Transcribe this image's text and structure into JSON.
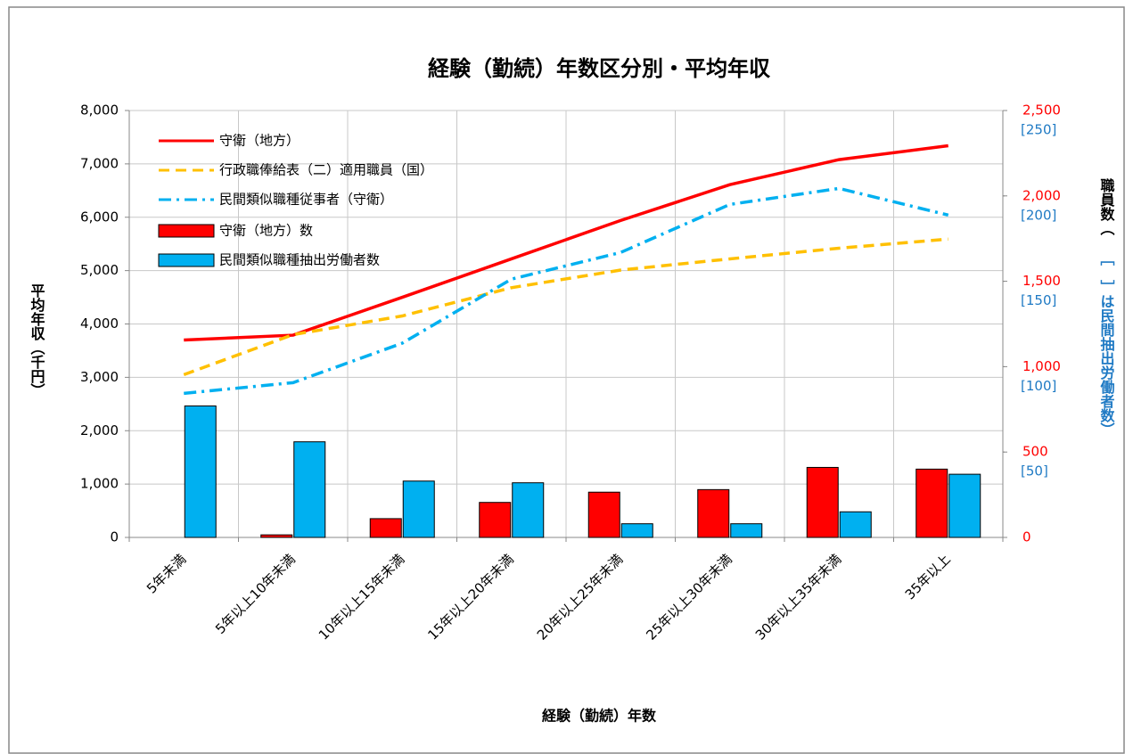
{
  "chart_data": {
    "type": "combo",
    "title": "経験（勤続）年数区分別・平均年収",
    "x_label": "経験（勤続）年数",
    "y_label": "平均年収（千円）",
    "y2_label": "職員数（",
    "y3_label": "［　］は民間抽出労働者数）",
    "categories": [
      "5年未満",
      "5年以上10年未満",
      "10年以上15年未満",
      "15年以上20年未満",
      "20年以上25年未満",
      "25年以上30年未満",
      "30年以上35年未満",
      "35年以上"
    ],
    "ylim": [
      0,
      8000
    ],
    "yticks": [
      0,
      {
        "value": 1000,
        "label": "1,000"
      },
      {
        "value": 2000,
        "label": "2,000"
      },
      {
        "value": 3000,
        "label": "3,000"
      },
      {
        "value": 4000,
        "label": "4,000"
      },
      {
        "value": 5000,
        "label": "5,000"
      },
      {
        "value": 6000,
        "label": "6,000"
      },
      {
        "value": 7000,
        "label": "7,000"
      },
      {
        "value": 8000,
        "label": "8,000"
      }
    ],
    "y2lim": [
      0,
      2500
    ],
    "y2ticks": [
      0,
      500,
      {
        "value": 1000,
        "label": "1,000"
      },
      {
        "value": 1500,
        "label": "1,500"
      },
      {
        "value": 2000,
        "label": "2,000"
      },
      {
        "value": 2500,
        "label": "2,500"
      }
    ],
    "y2color": "#ff0000",
    "y3lim": [
      0,
      250
    ],
    "y3ticks": [
      {
        "value": 50,
        "label": "[50]"
      },
      {
        "value": 100,
        "label": "[100]"
      },
      {
        "value": 150,
        "label": "[150]"
      },
      {
        "value": 200,
        "label": "[200]"
      },
      {
        "value": 250,
        "label": "[250]"
      }
    ],
    "y3color": "#1f7ac4",
    "grid": true,
    "legend": "upper left",
    "series": [
      {
        "name": "守衛（地方）",
        "type": "line",
        "linestyle": "solid",
        "color": "#ff0000",
        "values": [
          3700,
          3790,
          4500,
          5220,
          5940,
          6610,
          7080,
          7340
        ]
      },
      {
        "name": "行政職俸給表（二）適用職員（国）",
        "type": "line",
        "linestyle": "dashed",
        "color": "#ffc000",
        "values": [
          3050,
          3800,
          4150,
          4680,
          5010,
          5220,
          5420,
          5590
        ]
      },
      {
        "name": "民間類似職種従事者（守衛）",
        "type": "line",
        "linestyle": "dashdot",
        "color": "#00b0f0",
        "values": [
          2700,
          2900,
          3640,
          4840,
          5340,
          6240,
          6540,
          6040
        ]
      },
      {
        "name": "守衛（地方）数",
        "type": "bar",
        "axis": "y2",
        "color": "#ff0000",
        "values": [
          0,
          15,
          110,
          205,
          265,
          280,
          410,
          400
        ]
      },
      {
        "name": "民間類似職種抽出労働者数",
        "type": "bar",
        "axis": "y3",
        "color": "#00b0f0",
        "values": [
          77,
          56,
          33,
          32,
          8,
          8,
          15,
          37
        ]
      }
    ]
  }
}
